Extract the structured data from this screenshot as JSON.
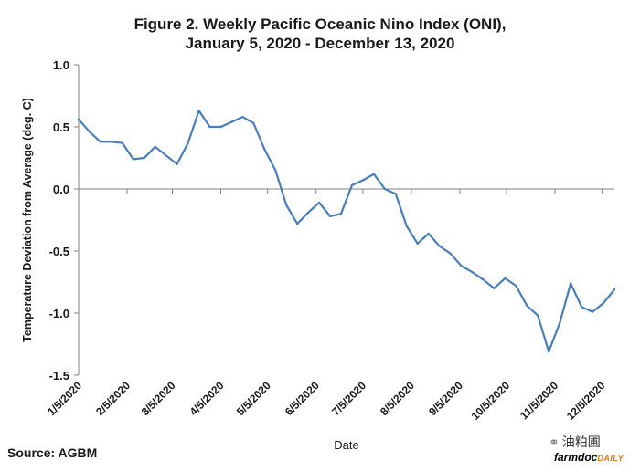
{
  "chart_data": {
    "type": "line",
    "title_line1": "Figure 2. Weekly Pacific Oceanic Nino Index (ONI),",
    "title_line2": "January 5, 2020 - December 13, 2020",
    "xlabel": "Date",
    "ylabel": "Temperature Deviation from Average (deg. C)",
    "ylim": [
      -1.5,
      1.0
    ],
    "yticks": [
      "1.0",
      "0.5",
      "0.0",
      "-0.5",
      "-1.0",
      "-1.5"
    ],
    "ytick_values": [
      1.0,
      0.5,
      0.0,
      -0.5,
      -1.0,
      -1.5
    ],
    "xtick_labels": [
      "1/5/2020",
      "2/5/2020",
      "3/5/2020",
      "4/5/2020",
      "5/5/2020",
      "6/5/2020",
      "7/5/2020",
      "8/5/2020",
      "9/5/2020",
      "10/5/2020",
      "11/5/2020",
      "12/5/2020"
    ],
    "xtick_days": [
      0,
      31,
      60,
      91,
      121,
      152,
      182,
      213,
      244,
      274,
      305,
      335
    ],
    "x_range_days": [
      0,
      343
    ],
    "series": [
      {
        "name": "ONI",
        "color": "#4a7ebb",
        "days": [
          0,
          7,
          14,
          21,
          28,
          35,
          42,
          49,
          56,
          63,
          70,
          77,
          84,
          91,
          98,
          105,
          112,
          119,
          126,
          133,
          140,
          147,
          154,
          161,
          168,
          175,
          182,
          189,
          196,
          203,
          210,
          217,
          224,
          231,
          238,
          245,
          252,
          259,
          266,
          273,
          280,
          287,
          294,
          301,
          308,
          315,
          322,
          329,
          336,
          343
        ],
        "values": [
          0.56,
          0.46,
          0.38,
          0.38,
          0.37,
          0.24,
          0.25,
          0.34,
          0.27,
          0.2,
          0.37,
          0.63,
          0.5,
          0.5,
          0.54,
          0.58,
          0.53,
          0.32,
          0.15,
          -0.13,
          -0.28,
          -0.19,
          -0.11,
          -0.22,
          -0.2,
          0.03,
          0.07,
          0.12,
          0.0,
          -0.04,
          -0.3,
          -0.44,
          -0.36,
          -0.46,
          -0.52,
          -0.62,
          -0.67,
          -0.73,
          -0.8,
          -0.72,
          -0.78,
          -0.94,
          -1.02,
          -1.31,
          -1.08,
          -0.76,
          -0.95,
          -0.99,
          -0.92,
          -0.81
        ]
      }
    ]
  },
  "footer": {
    "source": "Source: AGBM",
    "watermark": "油粕圃",
    "watermark_icon": "wechat-icon",
    "brand_main": "farmdoc",
    "brand_daily": "DAILY"
  }
}
